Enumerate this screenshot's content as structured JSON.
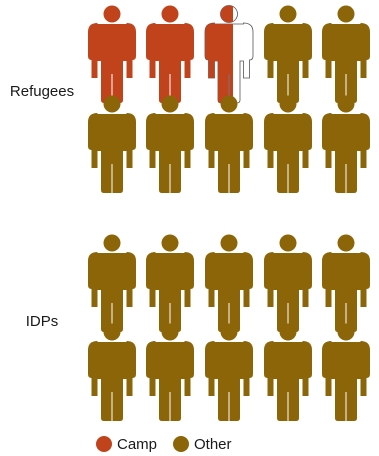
{
  "chart_data": {
    "type": "pictograph",
    "units_per_group": 10,
    "groups": [
      {
        "label": "Refugees",
        "camp": 2.5,
        "other": 7.5
      },
      {
        "label": "IDPs",
        "camp": 0,
        "other": 10
      }
    ],
    "legend": [
      {
        "key": "camp",
        "label": "Camp",
        "color": "#C0431C"
      },
      {
        "key": "other",
        "label": "Other",
        "color": "#8B6508"
      }
    ]
  },
  "colors": {
    "camp": "#C0431C",
    "other": "#8B6508",
    "empty_fill": "#ffffff",
    "empty_stroke": "#555555"
  }
}
